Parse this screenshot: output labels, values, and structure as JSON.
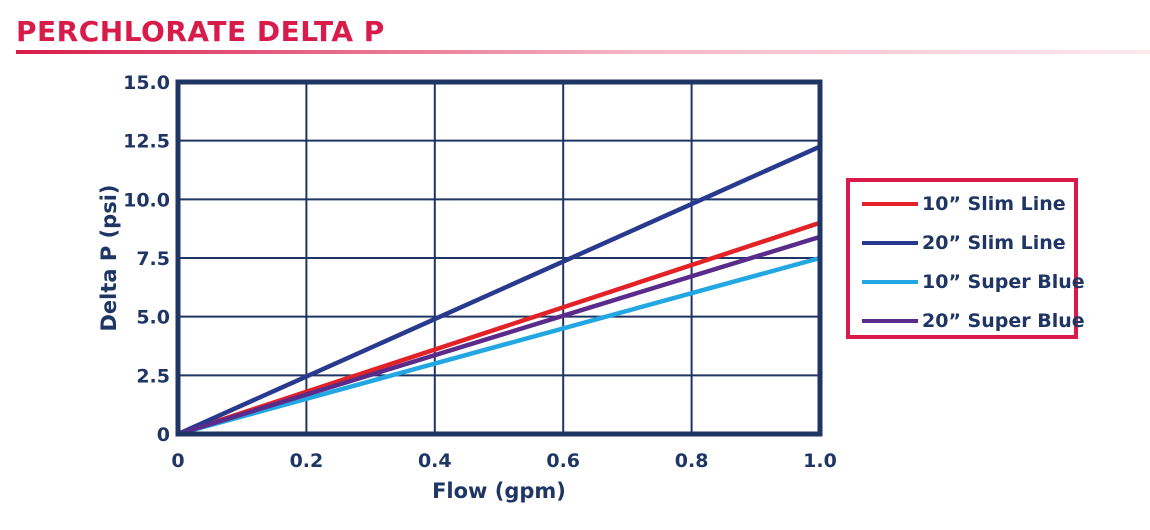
{
  "title": "PERCHLORATE DELTA P",
  "colors": {
    "title": "#d81b4a",
    "axis": "#1f3564",
    "grid": "#1f3564",
    "legend_border": "#d81b4a"
  },
  "chart_data": {
    "type": "line",
    "title": "",
    "xlabel": "Flow (gpm)",
    "ylabel": "Delta P (psi)",
    "xlim": [
      0,
      1.0
    ],
    "ylim": [
      0,
      15.0
    ],
    "x_ticks": [
      "0",
      "0.2",
      "0.4",
      "0.6",
      "0.8",
      "1.0"
    ],
    "y_ticks": [
      "0",
      "2.5",
      "5.0",
      "7.5",
      "10.0",
      "12.5",
      "15.0"
    ],
    "grid": true,
    "legend_position": "right",
    "series": [
      {
        "name": "10” Slim Line",
        "color": "#e32228",
        "x": [
          0,
          1.0
        ],
        "y": [
          0,
          9.0
        ]
      },
      {
        "name": "20” Slim Line",
        "color": "#283a8e",
        "x": [
          0,
          1.0
        ],
        "y": [
          0,
          12.25
        ]
      },
      {
        "name": "10” Super Blue",
        "color": "#22a7e2",
        "x": [
          0,
          1.0
        ],
        "y": [
          0,
          7.5
        ]
      },
      {
        "name": "20” Super Blue",
        "color": "#5b2b8c",
        "x": [
          0,
          1.0
        ],
        "y": [
          0,
          8.4
        ]
      }
    ]
  }
}
